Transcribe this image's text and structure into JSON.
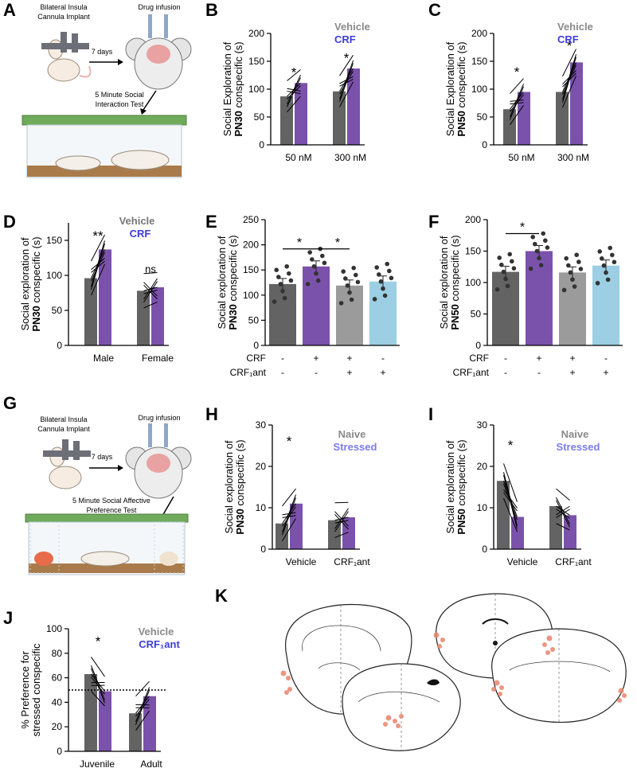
{
  "panels": {
    "A": {
      "letter": "A",
      "implant_label_1": "Bilateral Insula",
      "implant_label_2": "Cannula Implant",
      "drug_label": "Drug infusion",
      "days_label": "7 days",
      "test_label_1": "5 Minute Social",
      "test_label_2": "Interaction Test"
    },
    "G": {
      "letter": "G",
      "implant_label_1": "Bilateral Insula",
      "implant_label_2": "Cannula Implant",
      "drug_label": "Drug infusion",
      "days_label": "7 days",
      "test_label_1": "5 Minute Social Affective",
      "test_label_2": "Preference Test"
    },
    "K": {
      "letter": "K"
    }
  },
  "colors": {
    "vehicle": "#636363",
    "crf": "#7b52ab",
    "gray": "#9b9b9b",
    "lightblue": "#9ccfe3",
    "legend_blue": "#3d3ddb",
    "legend_stressed": "#7b7bea",
    "legend_gray": "#8a8a8a",
    "injection": "#e8846e"
  },
  "chart_data": [
    {
      "panel": "B",
      "type": "bar",
      "ylabel_line1": "Social Exploration of",
      "ylabel_bold": "PN30",
      "ylabel_rest": " conspecific (s)",
      "ylim": [
        0,
        200
      ],
      "yticks": [
        0,
        50,
        100,
        150,
        200
      ],
      "categories": [
        "50 nM",
        "300 nM"
      ],
      "series": [
        {
          "name": "Vehicle",
          "values": [
            87,
            96
          ]
        },
        {
          "name": "CRF",
          "values": [
            111,
            137
          ]
        }
      ],
      "legend": [
        "Vehicle",
        "CRF"
      ],
      "annotations": [
        {
          "text": "*",
          "category": 0,
          "y": 122
        },
        {
          "text": "*",
          "category": 1,
          "y": 148
        }
      ]
    },
    {
      "panel": "C",
      "type": "bar",
      "ylabel_line1": "Social Exploration of",
      "ylabel_bold": "PN50",
      "ylabel_rest": " conspecific (s)",
      "ylim": [
        0,
        200
      ],
      "yticks": [
        0,
        50,
        100,
        150,
        200
      ],
      "categories": [
        "50 nM",
        "300 nM"
      ],
      "series": [
        {
          "name": "Vehicle",
          "values": [
            64,
            95
          ]
        },
        {
          "name": "CRF",
          "values": [
            95,
            148
          ]
        }
      ],
      "legend": [
        "Vehicle",
        "CRF"
      ],
      "annotations": [
        {
          "text": "*",
          "category": 0,
          "y": 123
        },
        {
          "text": "*",
          "category": 1,
          "y": 170
        }
      ]
    },
    {
      "panel": "D",
      "type": "bar",
      "ylabel_line1": "Social exploration of",
      "ylabel_bold": "PN30",
      "ylabel_rest": " conspecific (s)",
      "ylim": [
        0,
        175
      ],
      "yticks": [
        0,
        50,
        100,
        150
      ],
      "categories": [
        "Male",
        "Female"
      ],
      "series": [
        {
          "name": "Vehicle",
          "values": [
            96,
            78
          ]
        },
        {
          "name": "CRF",
          "values": [
            137,
            83
          ]
        }
      ],
      "legend": [
        "Vehicle",
        "CRF"
      ],
      "annotations": [
        {
          "text": "**",
          "category": 0,
          "y": 150
        },
        {
          "text": "ns",
          "category": 1,
          "y": 104
        }
      ]
    },
    {
      "panel": "E",
      "type": "bar",
      "ylabel_line1": "Social exploration of",
      "ylabel_bold": "PN30",
      "ylabel_rest": " conspecific (s)",
      "ylim": [
        0,
        250
      ],
      "yticks": [
        0,
        50,
        100,
        150,
        200,
        250
      ],
      "values": [
        122,
        157,
        119,
        127
      ],
      "row_labels": [
        "CRF",
        "CRF₁ant"
      ],
      "conditions": [
        [
          "-",
          "+",
          "+",
          "-"
        ],
        [
          "-",
          "-",
          "+",
          "+"
        ]
      ],
      "annotations": [
        "*",
        "*"
      ]
    },
    {
      "panel": "F",
      "type": "bar",
      "ylabel_line1": "Social exploration of",
      "ylabel_bold": "PN50",
      "ylabel_rest": " conspecific (s)",
      "ylim": [
        0,
        200
      ],
      "yticks": [
        0,
        50,
        100,
        150,
        200
      ],
      "values": [
        117,
        150,
        116,
        127
      ],
      "row_labels": [
        "CRF",
        "CRF₁ant"
      ],
      "conditions": [
        [
          "-",
          "+",
          "+",
          "-"
        ],
        [
          "-",
          "-",
          "+",
          "+"
        ]
      ],
      "annotations": [
        "*"
      ]
    },
    {
      "panel": "H",
      "type": "bar",
      "ylabel_line1": "Social exploration of",
      "ylabel_bold": "PN30",
      "ylabel_rest": " conspecific (s)",
      "ylim": [
        0,
        30
      ],
      "yticks": [
        0,
        10,
        20,
        30
      ],
      "categories": [
        "Vehicle",
        "CRF₁ant"
      ],
      "series": [
        {
          "name": "Naive",
          "values": [
            6.2,
            7.0
          ]
        },
        {
          "name": "Stressed",
          "values": [
            11.0,
            7.7
          ]
        }
      ],
      "legend": [
        "Naive",
        "Stressed"
      ],
      "annotations": [
        {
          "text": "*",
          "category": 0,
          "y": 25
        }
      ]
    },
    {
      "panel": "I",
      "type": "bar",
      "ylabel_line1": "Social exploration of",
      "ylabel_bold": "PN50",
      "ylabel_rest": " conspecific (s)",
      "ylim": [
        0,
        30
      ],
      "yticks": [
        0,
        10,
        20,
        30
      ],
      "categories": [
        "Vehicle",
        "CRF₁ant"
      ],
      "series": [
        {
          "name": "Naive",
          "values": [
            16.5,
            10.4
          ]
        },
        {
          "name": "Stressed",
          "values": [
            7.8,
            8.2
          ]
        }
      ],
      "legend": [
        "Naive",
        "Stressed"
      ],
      "annotations": [
        {
          "text": "*",
          "category": 0,
          "y": 24
        }
      ]
    },
    {
      "panel": "J",
      "type": "bar",
      "ylabel_line1": "% Preference for",
      "ylabel_line2": "stressed conspecific",
      "ylim": [
        0,
        100
      ],
      "yticks": [
        0,
        20,
        40,
        60,
        80,
        100
      ],
      "categories": [
        "Juvenile",
        "Adult"
      ],
      "series": [
        {
          "name": "Vehicle",
          "values": [
            63,
            31
          ]
        },
        {
          "name": "CRF₁ant",
          "values": [
            49,
            45
          ]
        }
      ],
      "legend": [
        "Vehicle",
        "CRF₁ant"
      ],
      "reference_line": 50,
      "annotations": [
        {
          "text": "*",
          "category": 0,
          "y": 86
        }
      ]
    }
  ]
}
